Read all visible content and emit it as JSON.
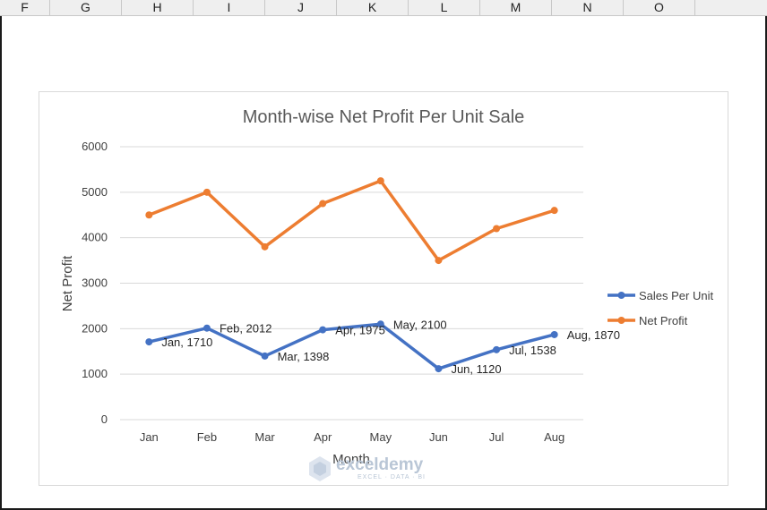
{
  "spreadsheet": {
    "columns": [
      "F",
      "G",
      "H",
      "I",
      "J",
      "K",
      "L",
      "M",
      "N",
      "O"
    ]
  },
  "watermark": {
    "name": "exceldemy",
    "tagline": "EXCEL · DATA · BI"
  },
  "chart_data": {
    "type": "line",
    "title": "Month-wise Net Profit Per Unit Sale",
    "xlabel": "Month",
    "ylabel": "Net Profit",
    "categories": [
      "Jan",
      "Feb",
      "Mar",
      "Apr",
      "May",
      "Jun",
      "Jul",
      "Aug"
    ],
    "ylim": [
      0,
      6000
    ],
    "yticks": [
      0,
      1000,
      2000,
      3000,
      4000,
      5000,
      6000
    ],
    "grid": true,
    "legend_position": "right",
    "series": [
      {
        "name": "Sales Per Unit",
        "color": "#4472c4",
        "values": [
          1710,
          2012,
          1398,
          1975,
          2100,
          1120,
          1538,
          1870
        ],
        "data_labels": [
          "Jan, 1710",
          "Feb, 2012",
          "Mar, 1398",
          "Apr, 1975",
          "May, 2100",
          "Jun, 1120",
          "Jul, 1538",
          "Aug, 1870"
        ]
      },
      {
        "name": "Net Profit",
        "color": "#ed7d31",
        "values": [
          4500,
          5000,
          3800,
          4750,
          5250,
          3500,
          4200,
          4600
        ]
      }
    ]
  }
}
